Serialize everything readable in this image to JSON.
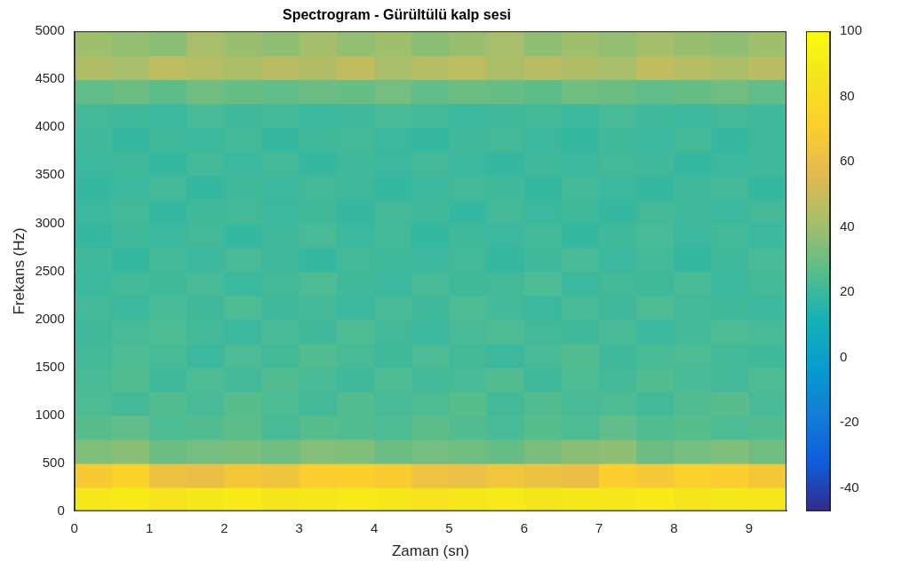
{
  "chart_data": {
    "type": "heatmap",
    "title": "Spectrogram - Gürültülü kalp sesi",
    "x_label": "Zaman (sn)",
    "y_label": "Frekans (Hz)",
    "x_bins": [
      0,
      0.5,
      1,
      1.5,
      2,
      2.5,
      3,
      3.5,
      4,
      4.5,
      5,
      5.5,
      6,
      6.5,
      7,
      7.5,
      8,
      8.5,
      9,
      9.5
    ],
    "y_bins": [
      0,
      250,
      500,
      750,
      1000,
      1250,
      1500,
      1750,
      2000,
      2250,
      2500,
      2750,
      3000,
      3250,
      3500,
      3750,
      4000,
      4250,
      4500,
      4750,
      5000
    ],
    "cells": [
      [
        88,
        90,
        86,
        89,
        91,
        87,
        88,
        90,
        89,
        86,
        88,
        90,
        87,
        89,
        88,
        91,
        87,
        89,
        88
      ],
      [
        68,
        74,
        62,
        60,
        66,
        64,
        70,
        72,
        69,
        63,
        61,
        65,
        62,
        60,
        71,
        67,
        73,
        70,
        66
      ],
      [
        34,
        36,
        30,
        32,
        33,
        31,
        35,
        34,
        30,
        32,
        31,
        29,
        33,
        36,
        37,
        30,
        32,
        34,
        31
      ],
      [
        26,
        28,
        24,
        25,
        27,
        23,
        26,
        25,
        24,
        27,
        25,
        23,
        26,
        24,
        28,
        25,
        26,
        24,
        25
      ],
      [
        24,
        22,
        25,
        23,
        26,
        24,
        22,
        25,
        23,
        24,
        26,
        22,
        25,
        23,
        24,
        22,
        25,
        26,
        23
      ],
      [
        23,
        25,
        21,
        24,
        22,
        25,
        23,
        21,
        24,
        22,
        23,
        25,
        21,
        24,
        22,
        25,
        23,
        22,
        24
      ],
      [
        22,
        24,
        23,
        20,
        24,
        22,
        25,
        23,
        21,
        24,
        22,
        20,
        23,
        25,
        21,
        23,
        24,
        22,
        21
      ],
      [
        21,
        23,
        24,
        22,
        20,
        23,
        21,
        24,
        22,
        20,
        23,
        24,
        22,
        21,
        23,
        20,
        22,
        24,
        23
      ],
      [
        22,
        20,
        23,
        21,
        24,
        21,
        22,
        20,
        23,
        21,
        24,
        22,
        20,
        23,
        21,
        24,
        22,
        21,
        20
      ],
      [
        20,
        22,
        21,
        23,
        20,
        22,
        24,
        21,
        20,
        23,
        21,
        22,
        24,
        20,
        22,
        21,
        23,
        20,
        22
      ],
      [
        21,
        19,
        22,
        20,
        23,
        21,
        19,
        22,
        21,
        20,
        22,
        19,
        21,
        23,
        20,
        22,
        19,
        21,
        23
      ],
      [
        19,
        21,
        20,
        22,
        19,
        21,
        23,
        20,
        22,
        19,
        21,
        20,
        22,
        19,
        21,
        23,
        20,
        22,
        20
      ],
      [
        20,
        22,
        19,
        21,
        22,
        20,
        21,
        19,
        22,
        21,
        19,
        22,
        20,
        21,
        19,
        22,
        21,
        20,
        22
      ],
      [
        19,
        20,
        22,
        19,
        21,
        20,
        22,
        21,
        19,
        20,
        22,
        21,
        19,
        22,
        20,
        19,
        21,
        22,
        19
      ],
      [
        20,
        21,
        19,
        22,
        20,
        22,
        19,
        21,
        20,
        22,
        20,
        19,
        21,
        20,
        22,
        21,
        19,
        20,
        21
      ],
      [
        21,
        19,
        21,
        20,
        22,
        19,
        21,
        22,
        20,
        19,
        21,
        22,
        20,
        19,
        21,
        20,
        22,
        19,
        21
      ],
      [
        22,
        21,
        20,
        23,
        21,
        22,
        20,
        21,
        23,
        22,
        20,
        21,
        22,
        20,
        23,
        21,
        20,
        22,
        21
      ],
      [
        28,
        30,
        27,
        31,
        29,
        28,
        30,
        29,
        32,
        28,
        30,
        29,
        27,
        31,
        30,
        28,
        29,
        31,
        28
      ],
      [
        44,
        42,
        47,
        45,
        43,
        46,
        44,
        48,
        42,
        45,
        47,
        43,
        46,
        44,
        42,
        48,
        45,
        43,
        46
      ],
      [
        40,
        38,
        36,
        42,
        39,
        37,
        41,
        38,
        40,
        36,
        39,
        42,
        37,
        40,
        38,
        41,
        39,
        37,
        40
      ]
    ],
    "xlim": [
      0,
      9.5
    ],
    "xticks": [
      0,
      1,
      2,
      3,
      4,
      5,
      6,
      7,
      8,
      9
    ],
    "ylim": [
      0,
      5000
    ],
    "yticks": [
      0,
      500,
      1000,
      1500,
      2000,
      2500,
      3000,
      3500,
      4000,
      4500,
      5000
    ],
    "colorbar": {
      "range": [
        -47,
        100
      ],
      "ticks": [
        -40,
        -20,
        0,
        20,
        40,
        60,
        80,
        100
      ]
    },
    "grid": false
  }
}
